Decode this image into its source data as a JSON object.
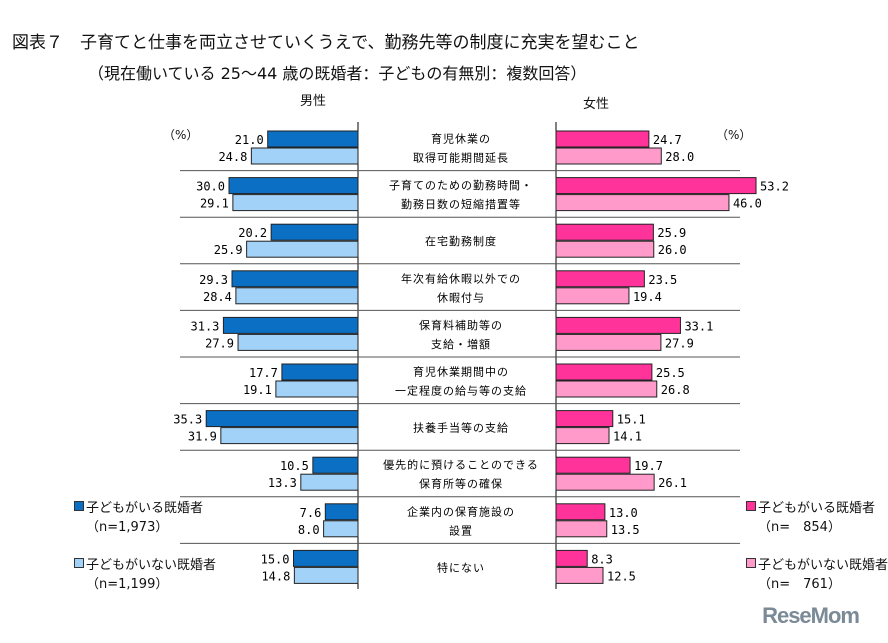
{
  "chart_data": {
    "type": "bar",
    "title": "図表７　子育てと仕事を両立させていくうえで、勤務先等の制度に充実を望むこと",
    "subtitle": "（現在働いている 25〜44 歳の既婚者：子どもの有無別：複数回答）",
    "unit": "（%）",
    "categories": [
      [
        "育児休業の",
        "取得可能期間延長"
      ],
      [
        "子育てのための勤務時間・",
        "勤務日数の短縮措置等"
      ],
      [
        "在宅勤務制度"
      ],
      [
        "年次有給休暇以外での",
        "休暇付与"
      ],
      [
        "保育料補助等の",
        "支給・増額"
      ],
      [
        "育児休業期間中の",
        "一定程度の給与等の支給"
      ],
      [
        "扶養手当等の支給"
      ],
      [
        "優先的に預けることのできる",
        "保育所等の確保"
      ],
      [
        "企業内の保育施設の",
        "設置"
      ],
      [
        "特にない"
      ]
    ],
    "panels": [
      {
        "name": "男性",
        "series": [
          {
            "name": "子どもがいる既婚者",
            "n": "（n=1,973）",
            "color": "#0b6fc4",
            "values": [
              21.0,
              30.0,
              20.2,
              29.3,
              31.3,
              17.7,
              35.3,
              10.5,
              7.6,
              15.0
            ]
          },
          {
            "name": "子どもがいない既婚者",
            "n": "（n=1,199）",
            "color": "#a3d2f8",
            "values": [
              24.8,
              29.1,
              25.9,
              28.4,
              27.9,
              19.1,
              31.9,
              13.3,
              8.0,
              14.8
            ]
          }
        ]
      },
      {
        "name": "女性",
        "series": [
          {
            "name": "子どもがいる既婚者",
            "n": "（n=　854）",
            "color": "#ff3399",
            "values": [
              24.7,
              53.2,
              25.9,
              23.5,
              33.1,
              25.5,
              15.1,
              19.7,
              13.0,
              8.3
            ]
          },
          {
            "name": "子どもがいない既婚者",
            "n": "（n=　761）",
            "color": "#ff9acb",
            "values": [
              28.0,
              46.0,
              26.0,
              19.4,
              27.9,
              26.8,
              14.1,
              26.1,
              13.5,
              12.5
            ]
          }
        ]
      }
    ],
    "legend": [
      "left",
      "right"
    ]
  },
  "logo": "ReseMom"
}
